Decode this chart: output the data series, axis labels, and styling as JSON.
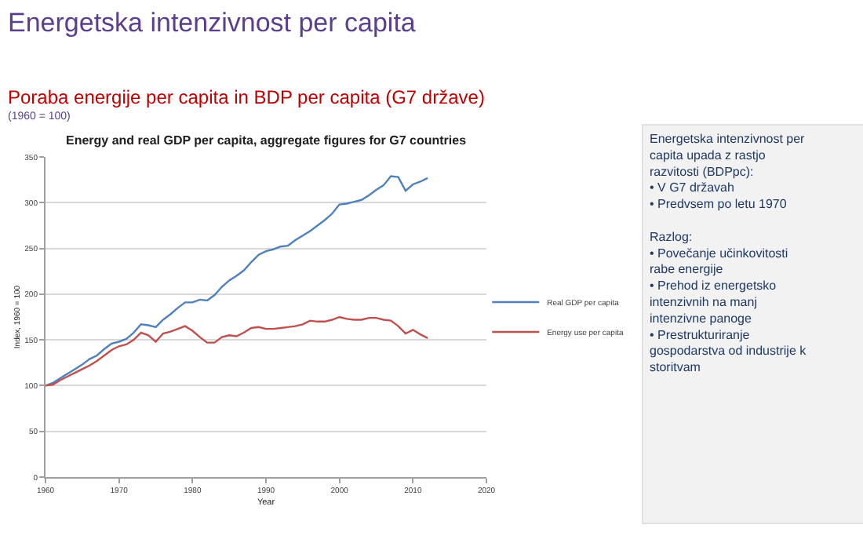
{
  "chart_data": {
    "type": "line",
    "title": "Energetska intenzivnost per capita",
    "subtitle": "Poraba energije per capita in BDP per capita (G7 države)",
    "annotations": [
      "(1960 = 100)",
      "Energy and real GDP per capita, aggregate figures for G7 countries",
      "Energetska intenzivnost per capita upada z rastjo razvitosti (BDPpc):",
      "• V G7 državah",
      "• Predvsem po letu 1970",
      "Razlog:",
      "• Povečanje učinkovitosti rabe energije",
      "• Prehod iz energetsko intenzivnih na manj intenzivne panoge",
      "• Prestrukturiranje gospodarstva od industrije k storitvam"
    ],
    "xlabel": "Year",
    "ylabel": "Index, 1960 = 100",
    "x": [
      1960,
      1961,
      1962,
      1963,
      1964,
      1965,
      1966,
      1967,
      1968,
      1969,
      1970,
      1971,
      1972,
      1973,
      1974,
      1975,
      1976,
      1977,
      1978,
      1979,
      1980,
      1981,
      1982,
      1983,
      1984,
      1985,
      1986,
      1987,
      1988,
      1989,
      1990,
      1991,
      1992,
      1993,
      1994,
      1995,
      1996,
      1997,
      1998,
      1999,
      2000,
      2001,
      2002,
      2003,
      2004,
      2005,
      2006,
      2007,
      2008,
      2009,
      2010,
      2011,
      2012
    ],
    "series": [
      {
        "name": "Real GDP per capita",
        "color": "#4f81bd",
        "values": [
          100,
          103,
          108,
          113,
          118,
          123,
          129,
          133,
          140,
          146,
          148,
          151,
          158,
          167,
          166,
          164,
          172,
          178,
          185,
          191,
          191,
          194,
          193,
          199,
          208,
          215,
          220,
          226,
          235,
          243,
          247,
          249,
          252,
          253,
          259,
          264,
          269,
          275,
          281,
          288,
          298,
          299,
          301,
          303,
          308,
          314,
          319,
          329,
          328,
          313,
          320,
          323,
          327
        ]
      },
      {
        "name": "Energy use per capita",
        "color": "#c0504d",
        "values": [
          100,
          101,
          106,
          110,
          114,
          118,
          122,
          127,
          133,
          139,
          143,
          145,
          150,
          158,
          155,
          148,
          157,
          159,
          162,
          165,
          160,
          153,
          147,
          147,
          153,
          155,
          154,
          158,
          163,
          164,
          162,
          162,
          163,
          164,
          165,
          167,
          171,
          170,
          170,
          172,
          175,
          173,
          172,
          172,
          174,
          174,
          172,
          171,
          165,
          157,
          161,
          156,
          152
        ]
      }
    ],
    "xlim": [
      1960,
      2020
    ],
    "xticks": [
      1960,
      1970,
      1980,
      1990,
      2000,
      2010,
      2020
    ],
    "ylim": [
      0,
      350
    ],
    "yticks": [
      0,
      50,
      100,
      150,
      200,
      250,
      300,
      350
    ],
    "grid": "y",
    "legend": "right",
    "marker": "none",
    "line_style": "solid"
  }
}
